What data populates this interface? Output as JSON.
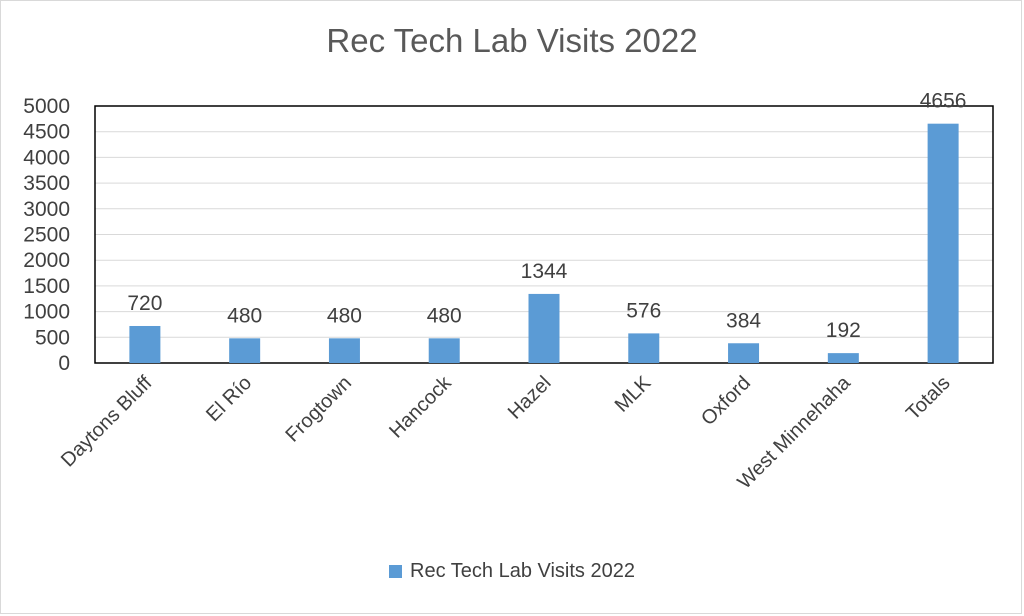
{
  "chart_data": {
    "type": "bar",
    "title": "Rec Tech Lab Visits 2022",
    "categories": [
      "Daytons Bluff",
      "El Río",
      "Frogtown",
      "Hancock",
      "Hazel",
      "MLK",
      "Oxford",
      "West Minnehaha",
      "Totals"
    ],
    "series": [
      {
        "name": "Rec Tech Lab Visits 2022",
        "values": [
          720,
          480,
          480,
          480,
          1344,
          576,
          384,
          192,
          4656
        ]
      }
    ],
    "data_labels": [
      "720",
      "480",
      "480",
      "480",
      "1344",
      "576",
      "384",
      "192",
      "4656"
    ],
    "ylim": [
      0,
      5000
    ],
    "yticks": [
      0,
      500,
      1000,
      1500,
      2000,
      2500,
      3000,
      3500,
      4000,
      4500,
      5000
    ],
    "grid": true,
    "legend_position": "bottom",
    "color": "#5b9bd5"
  }
}
